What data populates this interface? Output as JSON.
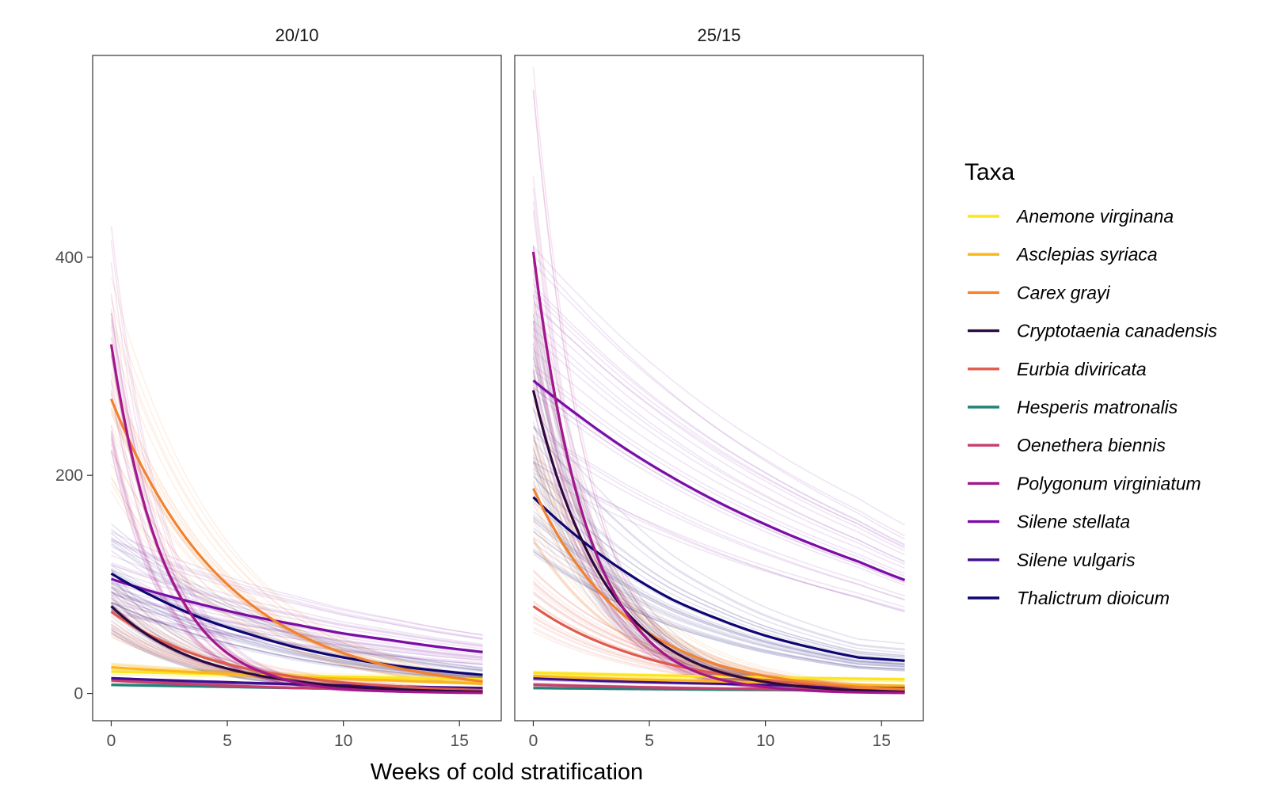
{
  "chart_data": {
    "type": "line",
    "xlabel": "Weeks of cold stratification",
    "ylabel": "",
    "xlim": [
      -0.8,
      16.8
    ],
    "ylim": [
      -25,
      585
    ],
    "x_ticks": [
      0,
      5,
      10,
      15
    ],
    "y_ticks": [
      0,
      200,
      400
    ],
    "x_domain": [
      0,
      16
    ],
    "grid": false,
    "legend": {
      "title": "Taxa",
      "position": "right"
    },
    "series_styles": [
      {
        "name": "Anemone virginana",
        "color": "#FCE51E"
      },
      {
        "name": "Asclepias syriaca",
        "color": "#FBB61A"
      },
      {
        "name": "Carex grayi",
        "color": "#F1822F"
      },
      {
        "name": "Cryptotaenia canadensis",
        "color": "#2D0A3E"
      },
      {
        "name": "Eurbia diviricata",
        "color": "#E05A4C"
      },
      {
        "name": "Hesperis matronalis",
        "color": "#21837A"
      },
      {
        "name": "Oenethera biennis",
        "color": "#C93F6C"
      },
      {
        "name": "Polygonum virginiatum",
        "color": "#A3168C"
      },
      {
        "name": "Silene stellata",
        "color": "#7A0DA6"
      },
      {
        "name": "Silene vulgaris",
        "color": "#3E0E8F"
      },
      {
        "name": "Thalictrum dioicum",
        "color": "#0E0773"
      }
    ],
    "panels": [
      {
        "title": "20/10",
        "series": [
          {
            "name": "Anemone virginana",
            "x": [
              0,
              4,
              8,
              12,
              16
            ],
            "y": [
              20,
              18,
              16,
              14.5,
              13
            ]
          },
          {
            "name": "Asclepias syriaca",
            "x": [
              0,
              4,
              8,
              12,
              16
            ],
            "y": [
              24,
              19,
              15,
              12,
              9
            ]
          },
          {
            "name": "Carex grayi",
            "x": [
              0,
              2,
              4,
              6,
              8,
              10,
              12,
              14,
              16
            ],
            "y": [
              270,
              182,
              122,
              82,
              55,
              37,
              25,
              17,
              11
            ]
          },
          {
            "name": "Cryptotaenia canadensis",
            "x": [
              0,
              2,
              4,
              6,
              8,
              10,
              12,
              14,
              16
            ],
            "y": [
              80,
              48,
              29,
              18,
              11,
              6.5,
              4,
              2.5,
              1.5
            ]
          },
          {
            "name": "Eurbia diviricata",
            "x": [
              0,
              2,
              4,
              6,
              8,
              10,
              12,
              14,
              16
            ],
            "y": [
              75,
              50,
              33,
              22,
              15,
              10,
              7,
              4.5,
              3
            ]
          },
          {
            "name": "Hesperis matronalis",
            "x": [
              0,
              4,
              8,
              12,
              16
            ],
            "y": [
              8,
              6.5,
              5,
              4,
              3
            ]
          },
          {
            "name": "Oenethera biennis",
            "x": [
              0,
              4,
              8,
              12,
              16
            ],
            "y": [
              12,
              8,
              5,
              3.5,
              2
            ]
          },
          {
            "name": "Polygonum virginiatum",
            "x": [
              0,
              1,
              2,
              3,
              4,
              5,
              6,
              7,
              8,
              10,
              12,
              14,
              16
            ],
            "y": [
              320,
              208,
              135,
              88,
              57,
              37,
              24,
              16,
              10,
              4,
              2,
              1,
              0.5
            ]
          },
          {
            "name": "Silene stellata",
            "x": [
              0,
              2,
              4,
              6,
              8,
              10,
              12,
              14,
              16
            ],
            "y": [
              105,
              92,
              81,
              71,
              63,
              55,
              49,
              43,
              38
            ]
          },
          {
            "name": "Silene vulgaris",
            "x": [
              0,
              4,
              8,
              12,
              16
            ],
            "y": [
              14,
              11,
              8.5,
              6.5,
              5
            ]
          },
          {
            "name": "Thalictrum dioicum",
            "x": [
              0,
              2,
              4,
              6,
              8,
              10,
              12,
              14,
              16
            ],
            "y": [
              110,
              87,
              68,
              54,
              42,
              33,
              26,
              21,
              17
            ]
          }
        ]
      },
      {
        "title": "25/15",
        "series": [
          {
            "name": "Anemone virginana",
            "x": [
              0,
              4,
              8,
              12,
              16
            ],
            "y": [
              19,
              17,
              15.5,
              14,
              13
            ]
          },
          {
            "name": "Asclepias syriaca",
            "x": [
              0,
              4,
              8,
              12,
              16
            ],
            "y": [
              16,
              13,
              11,
              9,
              7
            ]
          },
          {
            "name": "Carex grayi",
            "x": [
              0,
              2,
              4,
              6,
              8,
              10,
              12,
              14,
              16
            ],
            "y": [
              188,
              115,
              70,
              43,
              26,
              16,
              10,
              6,
              3.5
            ]
          },
          {
            "name": "Cryptotaenia canadensis",
            "x": [
              0,
              1,
              2,
              3,
              4,
              6,
              8,
              10,
              12,
              14,
              16
            ],
            "y": [
              278,
              200,
              145,
              104,
              75,
              39,
              20,
              10.5,
              5.5,
              2.8,
              1.5
            ]
          },
          {
            "name": "Eurbia diviricata",
            "x": [
              0,
              2,
              4,
              6,
              8,
              10,
              12,
              14,
              16
            ],
            "y": [
              80,
              55,
              38,
              26,
              18,
              12,
              8.5,
              6,
              4
            ]
          },
          {
            "name": "Hesperis matronalis",
            "x": [
              0,
              4,
              8,
              12,
              16
            ],
            "y": [
              5,
              4.2,
              3.5,
              3,
              2.5
            ]
          },
          {
            "name": "Oenethera biennis",
            "x": [
              0,
              4,
              8,
              12,
              16
            ],
            "y": [
              8,
              6,
              4.5,
              3.5,
              2.5
            ]
          },
          {
            "name": "Polygonum virginiatum",
            "x": [
              0,
              1,
              2,
              3,
              4,
              5,
              6,
              7,
              8,
              10,
              12,
              14,
              16
            ],
            "y": [
              405,
              265,
              173,
              113,
              74,
              48,
              31,
              20,
              13,
              6,
              2.5,
              1,
              0.5
            ]
          },
          {
            "name": "Silene stellata",
            "x": [
              0,
              2,
              4,
              6,
              8,
              10,
              12,
              14,
              16
            ],
            "y": [
              287,
              254,
              224,
              198,
              175,
              155,
              137,
              121,
              104
            ]
          },
          {
            "name": "Silene vulgaris",
            "x": [
              0,
              4,
              8,
              12,
              16
            ],
            "y": [
              14,
              11,
              9,
              7,
              5.5
            ]
          },
          {
            "name": "Thalictrum dioicum",
            "x": [
              0,
              2,
              4,
              6,
              8,
              10,
              12,
              14,
              16
            ],
            "y": [
              180,
              142,
              111,
              86,
              68,
              53,
              42,
              33,
              30
            ]
          }
        ]
      }
    ]
  }
}
